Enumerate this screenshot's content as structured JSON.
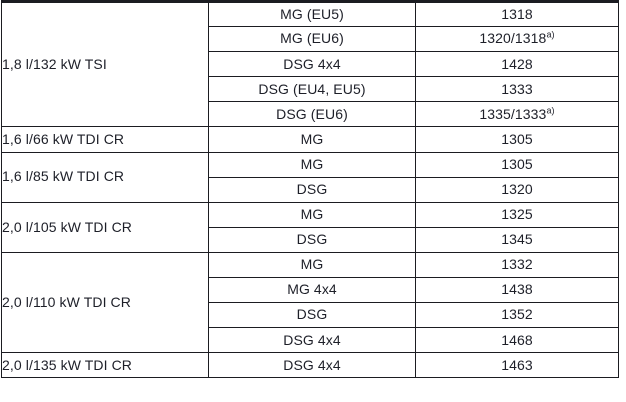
{
  "table": {
    "description": "engine-transmission-weight specification table",
    "colors": {
      "border": "#1b1c21",
      "text": "#1d1f28",
      "background": "#ffffff"
    },
    "groups": [
      {
        "engine": "1,8 l/132 kW TSI",
        "rows": [
          {
            "transmission": "MG (EU5)",
            "weight": "1318",
            "sup": ""
          },
          {
            "transmission": "MG (EU6)",
            "weight": "1320/1318",
            "sup": "a)"
          },
          {
            "transmission": "DSG 4x4",
            "weight": "1428",
            "sup": ""
          },
          {
            "transmission": "DSG (EU4, EU5)",
            "weight": "1333",
            "sup": ""
          },
          {
            "transmission": "DSG (EU6)",
            "weight": "1335/1333",
            "sup": "a)"
          }
        ]
      },
      {
        "engine": "1,6 l/66 kW TDI CR",
        "rows": [
          {
            "transmission": "MG",
            "weight": "1305",
            "sup": ""
          }
        ]
      },
      {
        "engine": "1,6 l/85 kW TDI CR",
        "rows": [
          {
            "transmission": "MG",
            "weight": "1305",
            "sup": ""
          },
          {
            "transmission": "DSG",
            "weight": "1320",
            "sup": ""
          }
        ]
      },
      {
        "engine": "2,0 l/105 kW TDI CR",
        "rows": [
          {
            "transmission": "MG",
            "weight": "1325",
            "sup": ""
          },
          {
            "transmission": "DSG",
            "weight": "1345",
            "sup": ""
          }
        ]
      },
      {
        "engine": "2,0 l/110 kW TDI CR",
        "rows": [
          {
            "transmission": "MG",
            "weight": "1332",
            "sup": ""
          },
          {
            "transmission": "MG 4x4",
            "weight": "1438",
            "sup": ""
          },
          {
            "transmission": "DSG",
            "weight": "1352",
            "sup": ""
          },
          {
            "transmission": "DSG 4x4",
            "weight": "1468",
            "sup": ""
          }
        ]
      },
      {
        "engine": "2,0 l/135 kW TDI CR",
        "rows": [
          {
            "transmission": "DSG 4x4",
            "weight": "1463",
            "sup": ""
          }
        ]
      }
    ]
  }
}
